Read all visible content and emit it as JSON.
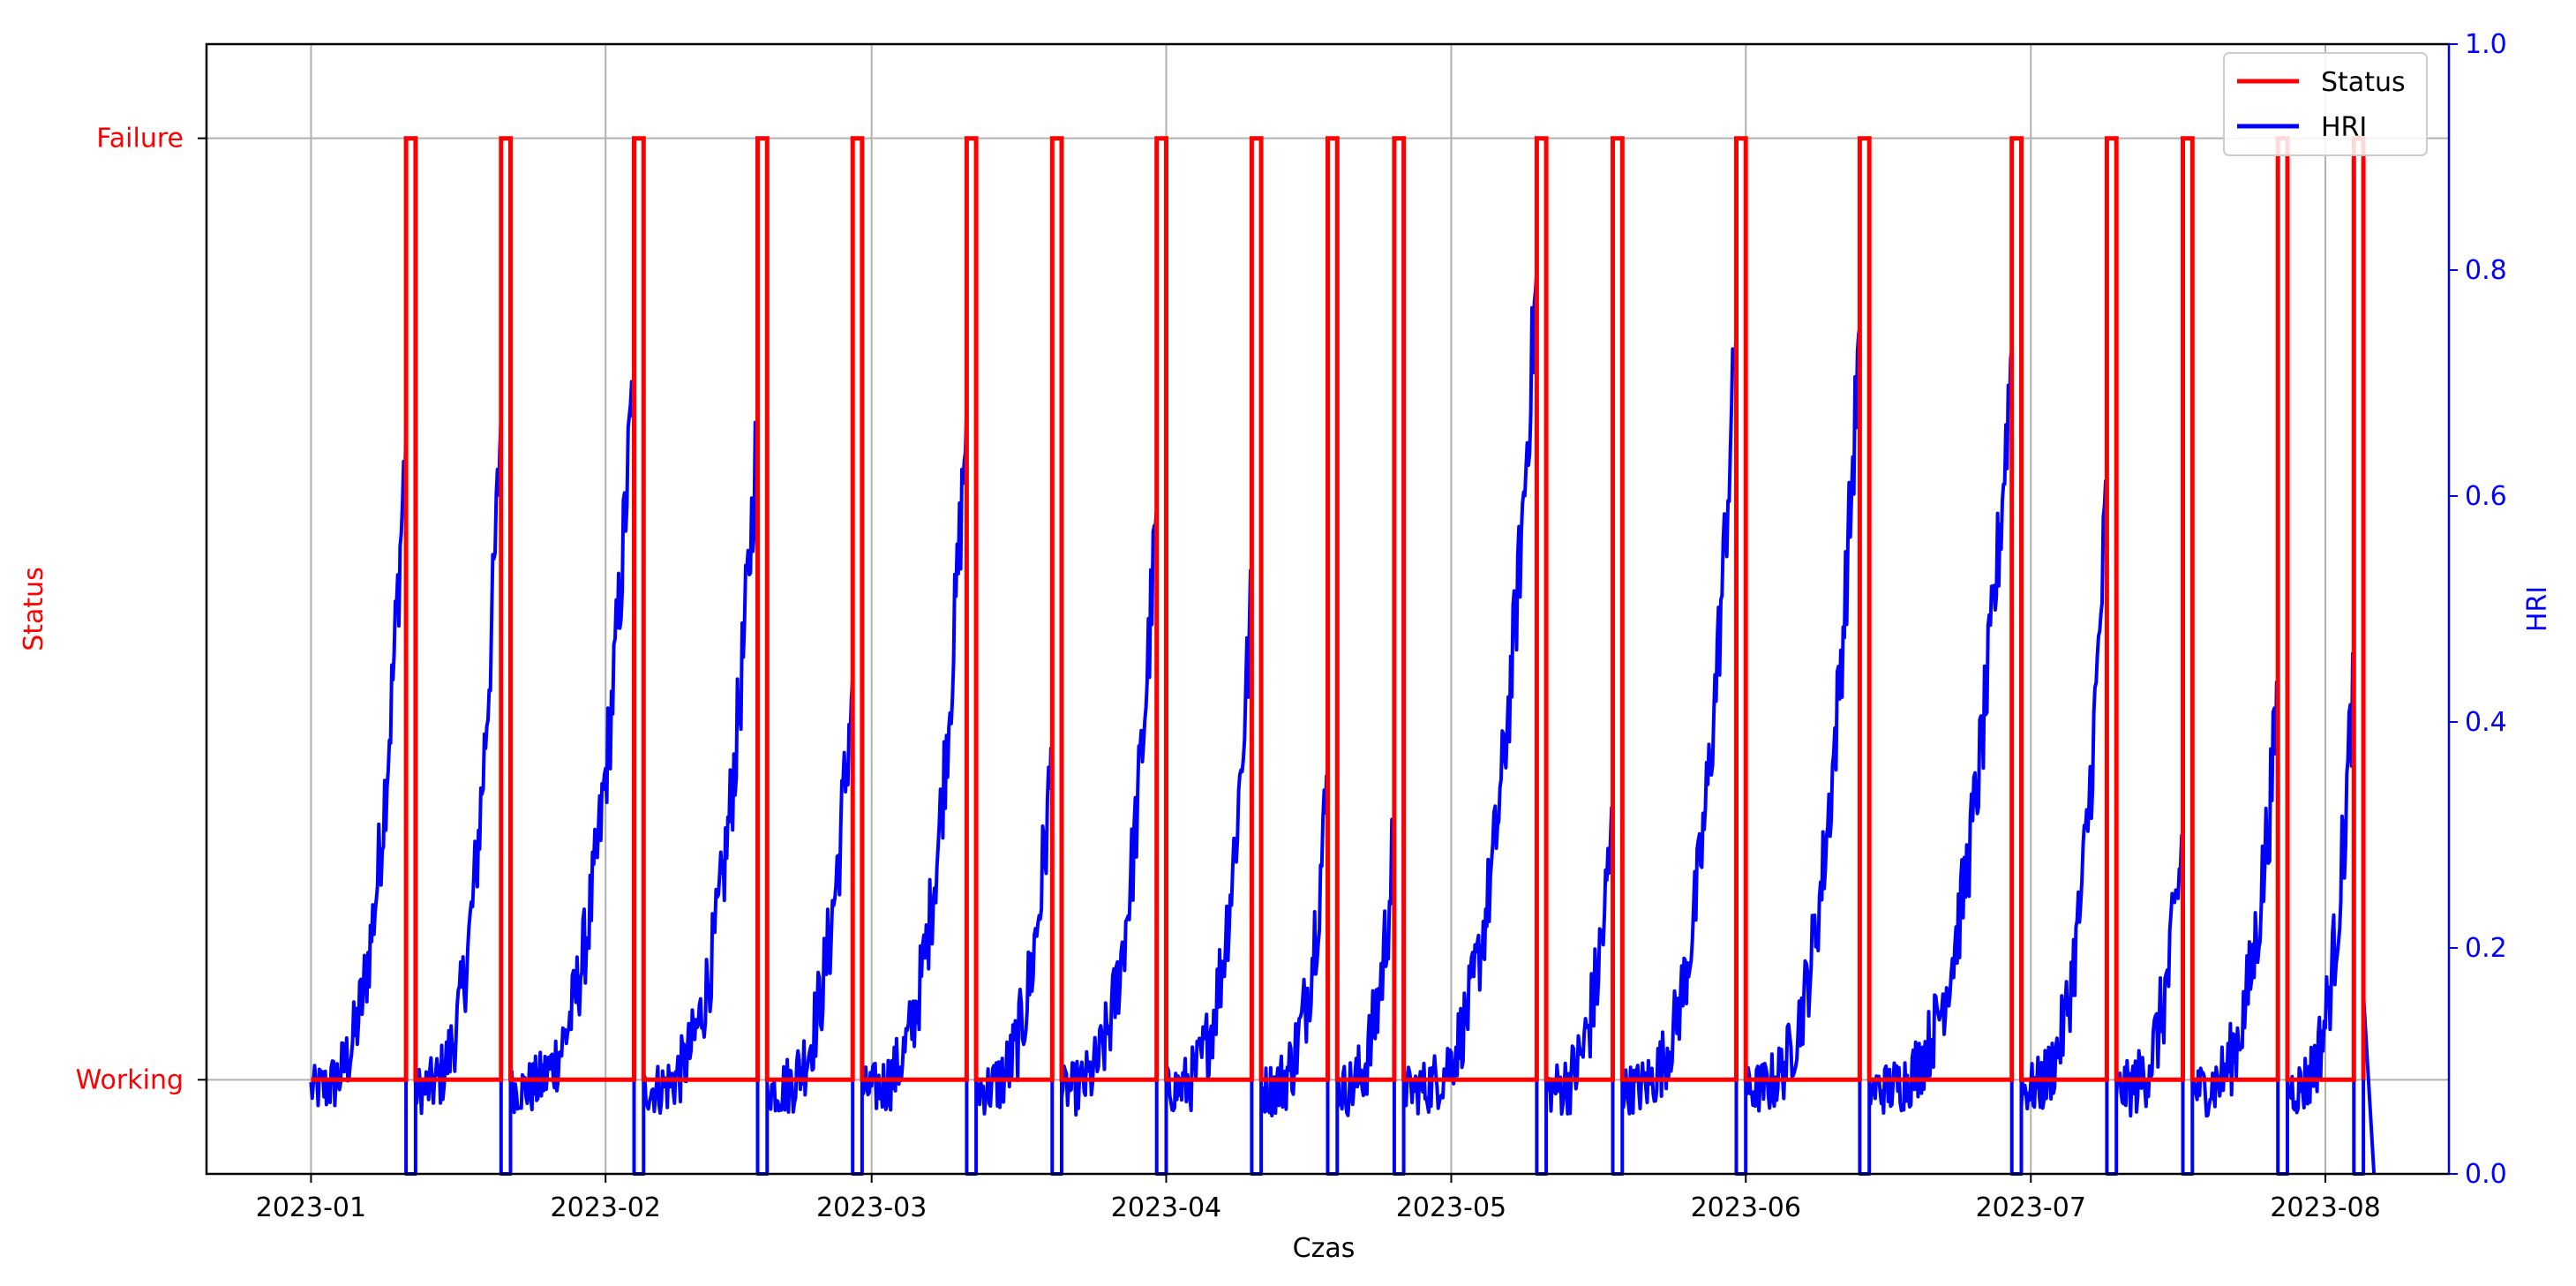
{
  "chart_data": {
    "type": "line",
    "xlabel": "Czas",
    "y_left_label": "Status",
    "y_right_label": "HRI",
    "x_ticks": [
      "2023-01",
      "2023-02",
      "2023-03",
      "2023-04",
      "2023-05",
      "2023-06",
      "2023-07",
      "2023-08"
    ],
    "x_range": [
      "2022-12-21",
      "2023-08-14"
    ],
    "y_left_ticks": [
      "Working",
      "Failure"
    ],
    "y_left_range": [
      -0.1,
      1.1
    ],
    "y_right_ticks": [
      "0.0",
      "0.2",
      "0.4",
      "0.6",
      "0.8",
      "1.0"
    ],
    "y_right_range": [
      0.0,
      1.0
    ],
    "grid": true,
    "legend_position": "top-right",
    "colors": {
      "status": "#ff0000",
      "hri": "#0000ff",
      "left_axis_text": "#ff0000",
      "right_axis_text": "#0000ff"
    },
    "data_start": "2023-01-01",
    "data_end": "2023-08-05",
    "series": [
      {
        "name": "Status",
        "axis": "left",
        "step": true,
        "baseline": "Working",
        "failure_intervals": [
          [
            "2023-01-11",
            "2023-01-12"
          ],
          [
            "2023-01-21",
            "2023-01-22"
          ],
          [
            "2023-02-04",
            "2023-02-05"
          ],
          [
            "2023-02-17",
            "2023-02-18"
          ],
          [
            "2023-02-27",
            "2023-02-28"
          ],
          [
            "2023-03-11",
            "2023-03-12"
          ],
          [
            "2023-03-20",
            "2023-03-21"
          ],
          [
            "2023-03-31",
            "2023-04-01"
          ],
          [
            "2023-04-10",
            "2023-04-11"
          ],
          [
            "2023-04-18",
            "2023-04-19"
          ],
          [
            "2023-04-25",
            "2023-04-26"
          ],
          [
            "2023-05-10",
            "2023-05-11"
          ],
          [
            "2023-05-18",
            "2023-05-19"
          ],
          [
            "2023-05-31",
            "2023-06-01"
          ],
          [
            "2023-06-13",
            "2023-06-14"
          ],
          [
            "2023-06-29",
            "2023-06-30"
          ],
          [
            "2023-07-09",
            "2023-07-10"
          ],
          [
            "2023-07-17",
            "2023-07-18"
          ],
          [
            "2023-07-27",
            "2023-07-28"
          ],
          [
            "2023-08-04",
            "2023-08-05"
          ]
        ]
      },
      {
        "name": "HRI",
        "axis": "right",
        "base_level": 0.075,
        "noise": 0.02,
        "cycle_peaks": [
          0.66,
          0.67,
          0.72,
          0.67,
          0.44,
          0.68,
          0.37,
          0.59,
          0.51,
          0.35,
          0.3,
          0.8,
          0.31,
          0.75,
          0.75,
          0.73,
          0.61,
          0.3,
          0.42,
          0.45
        ]
      }
    ]
  }
}
